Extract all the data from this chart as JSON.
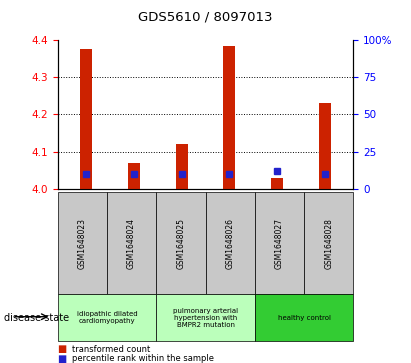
{
  "title": "GDS5610 / 8097013",
  "samples": [
    "GSM1648023",
    "GSM1648024",
    "GSM1648025",
    "GSM1648026",
    "GSM1648027",
    "GSM1648028"
  ],
  "red_values": [
    4.375,
    4.07,
    4.12,
    4.385,
    4.03,
    4.23
  ],
  "blue_pct": [
    10,
    10,
    10,
    10,
    12,
    10
  ],
  "ylim_left": [
    4.0,
    4.4
  ],
  "ylim_right": [
    0,
    100
  ],
  "yticks_left": [
    4.0,
    4.1,
    4.2,
    4.3,
    4.4
  ],
  "yticks_right": [
    0,
    25,
    50,
    75,
    100
  ],
  "bar_color": "#cc2200",
  "dot_color": "#2222cc",
  "bg_color": "#c8c8c8",
  "bar_width": 0.25,
  "legend_red": "transformed count",
  "legend_blue": "percentile rank within the sample",
  "group_info": [
    {
      "c1": 0,
      "c2": 1,
      "label": "idiopathic dilated\ncardiomyopathy",
      "color": "#bbffbb"
    },
    {
      "c1": 2,
      "c2": 3,
      "label": "pulmonary arterial\nhypertension with\nBMPR2 mutation",
      "color": "#bbffbb"
    },
    {
      "c1": 4,
      "c2": 5,
      "label": "healthy control",
      "color": "#33cc33"
    }
  ]
}
